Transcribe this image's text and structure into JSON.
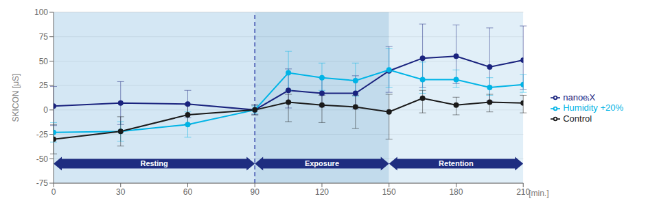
{
  "chart_data": {
    "type": "line",
    "ylabel": "SKICON [μS]",
    "xlabel": "[min.]",
    "x": [
      0,
      30,
      60,
      90,
      105,
      120,
      135,
      150,
      165,
      180,
      195,
      210
    ],
    "series": [
      {
        "name": "nanoeᵢX",
        "color": "#1a237e",
        "values": [
          4,
          7,
          6,
          0,
          20,
          17,
          17,
          40,
          53,
          55,
          44,
          51
        ],
        "err_up": [
          20,
          22,
          14,
          5,
          22,
          16,
          18,
          25,
          35,
          32,
          40,
          35
        ],
        "err_dn": [
          20,
          22,
          14,
          5,
          18,
          14,
          16,
          22,
          30,
          28,
          35,
          30
        ]
      },
      {
        "name": "Humidity +20%",
        "color": "#00b4e6",
        "values": [
          -23,
          -22,
          -15,
          0,
          38,
          33,
          30,
          41,
          31,
          31,
          23,
          26
        ],
        "err_up": [
          10,
          10,
          13,
          4,
          22,
          15,
          18,
          22,
          18,
          10,
          10,
          10
        ],
        "err_dn": [
          10,
          10,
          13,
          4,
          18,
          13,
          16,
          18,
          14,
          8,
          8,
          8
        ]
      },
      {
        "name": "Control",
        "color": "#1a1a1a",
        "values": [
          -30,
          -22,
          -5,
          0,
          8,
          5,
          3,
          -2,
          12,
          5,
          8,
          7
        ],
        "err_up": [
          15,
          15,
          10,
          5,
          8,
          10,
          12,
          18,
          8,
          8,
          8,
          8
        ],
        "err_dn": [
          15,
          15,
          10,
          5,
          20,
          18,
          22,
          28,
          15,
          10,
          10,
          10
        ]
      }
    ],
    "xlim": [
      0,
      210
    ],
    "xticks": [
      0,
      30,
      60,
      90,
      120,
      150,
      180,
      210
    ],
    "ylim": [
      -75,
      100
    ],
    "yticks": [
      -75,
      -50,
      -25,
      0,
      25,
      50,
      75,
      100
    ],
    "grid": true,
    "legend": "right",
    "marker": "circle",
    "phases": [
      {
        "label": "Resting",
        "from": 0,
        "to": 90,
        "color": "#c2ddf0"
      },
      {
        "label": "Exposure",
        "from": 90,
        "to": 150,
        "color": "#a8cce4"
      },
      {
        "label": "Retention",
        "from": 150,
        "to": 210,
        "color": "#d4e8f5"
      }
    ],
    "phase_y": -55,
    "phase_color": "#1e2d80",
    "vline": 90
  }
}
